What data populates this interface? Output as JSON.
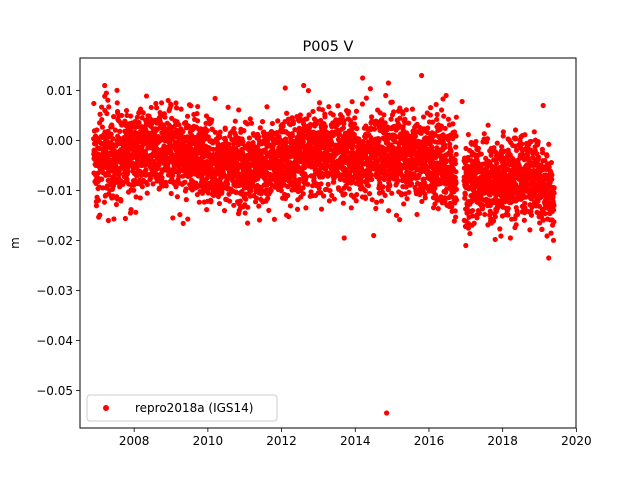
{
  "chart_data": {
    "type": "scatter",
    "title": "P005 V",
    "xlabel": "",
    "ylabel": "m",
    "xlim": [
      2006.53,
      2019.99
    ],
    "ylim": [
      -0.0575,
      0.0165
    ],
    "x_ticks": [
      2008,
      2010,
      2012,
      2014,
      2016,
      2018,
      2020
    ],
    "x_tick_labels": [
      "2008",
      "2010",
      "2012",
      "2014",
      "2016",
      "2018",
      "2020"
    ],
    "y_ticks": [
      0.01,
      0.0,
      -0.01,
      -0.02,
      -0.03,
      -0.04,
      -0.05
    ],
    "y_tick_labels": [
      "0.01",
      "0.00",
      "−0.01",
      "−0.02",
      "−0.03",
      "−0.04",
      "−0.05"
    ],
    "legend": {
      "location": "lower left",
      "entries": [
        "repro2018a (IGS14)"
      ]
    },
    "grid": false,
    "series": [
      {
        "name": "repro2018a (IGS14)",
        "color": "#ff0000",
        "marker": "circle",
        "sampling": "daily",
        "x_range": [
          2006.9,
          2019.4
        ],
        "envelope": [
          {
            "x": 2006.9,
            "center": -0.004,
            "spread": 0.004
          },
          {
            "x": 2007.2,
            "center": -0.003,
            "spread": 0.005
          },
          {
            "x": 2008.0,
            "center": -0.002,
            "spread": 0.004
          },
          {
            "x": 2009.0,
            "center": -0.002,
            "spread": 0.004
          },
          {
            "x": 2010.0,
            "center": -0.004,
            "spread": 0.004
          },
          {
            "x": 2011.0,
            "center": -0.006,
            "spread": 0.004
          },
          {
            "x": 2012.0,
            "center": -0.004,
            "spread": 0.004
          },
          {
            "x": 2013.0,
            "center": -0.002,
            "spread": 0.004
          },
          {
            "x": 2014.0,
            "center": -0.003,
            "spread": 0.004
          },
          {
            "x": 2015.0,
            "center": -0.003,
            "spread": 0.004
          },
          {
            "x": 2016.0,
            "center": -0.004,
            "spread": 0.004
          },
          {
            "x": 2016.8,
            "center": -0.006,
            "spread": 0.004
          },
          {
            "x": 2017.0,
            "center": -0.009,
            "spread": 0.004
          },
          {
            "x": 2018.0,
            "center": -0.008,
            "spread": 0.004
          },
          {
            "x": 2019.0,
            "center": -0.007,
            "spread": 0.004
          },
          {
            "x": 2019.4,
            "center": -0.012,
            "spread": 0.004
          }
        ],
        "gap_x": [
          2016.75,
          2016.95
        ],
        "outliers": [
          {
            "x": 2007.2,
            "y": 0.011
          },
          {
            "x": 2007.3,
            "y": -0.016
          },
          {
            "x": 2007.9,
            "y": -0.0145
          },
          {
            "x": 2012.1,
            "y": 0.0105
          },
          {
            "x": 2012.6,
            "y": 0.011
          },
          {
            "x": 2013.7,
            "y": -0.0195
          },
          {
            "x": 2014.2,
            "y": 0.0125
          },
          {
            "x": 2014.5,
            "y": -0.019
          },
          {
            "x": 2014.9,
            "y": 0.0115
          },
          {
            "x": 2015.8,
            "y": 0.013
          },
          {
            "x": 2016.9,
            "y": 0.0078
          },
          {
            "x": 2017.0,
            "y": -0.021
          },
          {
            "x": 2019.1,
            "y": 0.007
          },
          {
            "x": 2019.25,
            "y": -0.0235
          },
          {
            "x": 2014.85,
            "y": -0.0545
          }
        ]
      }
    ]
  }
}
